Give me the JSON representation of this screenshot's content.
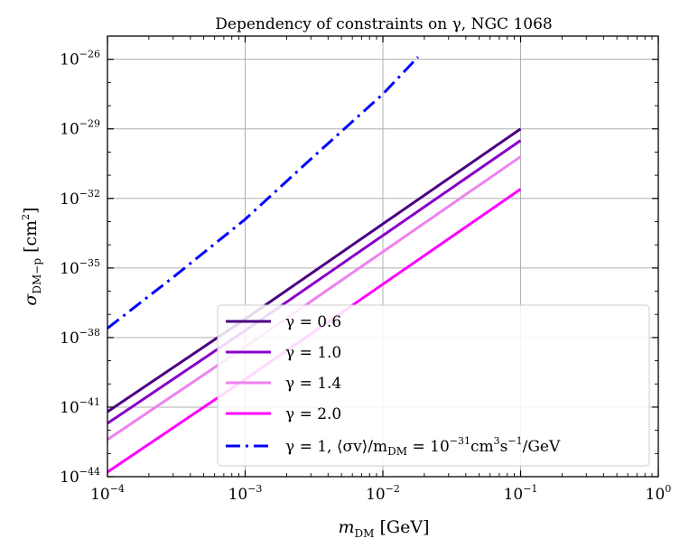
{
  "chart_data": {
    "type": "line",
    "title": "Dependency of constraints on γ, NGC 1068",
    "xlabel": "m_DM [GeV]",
    "ylabel": "σ_DM−p [cm²]",
    "xscale": "log",
    "yscale": "log",
    "xlim": [
      0.0001,
      1
    ],
    "ylim_exp": [
      -44,
      -25
    ],
    "grid": true,
    "legend_placement": "lower-right",
    "x_ticks": [
      {
        "base": "10",
        "exp": "−4"
      },
      {
        "base": "10",
        "exp": "−3"
      },
      {
        "base": "10",
        "exp": "−2"
      },
      {
        "base": "10",
        "exp": "−1"
      },
      {
        "base": "10",
        "exp": "0"
      }
    ],
    "y_ticks": [
      {
        "base": "10",
        "exp": "−26"
      },
      {
        "base": "10",
        "exp": "−29"
      },
      {
        "base": "10",
        "exp": "−32"
      },
      {
        "base": "10",
        "exp": "−35"
      },
      {
        "base": "10",
        "exp": "−38"
      },
      {
        "base": "10",
        "exp": "−41"
      },
      {
        "base": "10",
        "exp": "−44"
      }
    ],
    "series": [
      {
        "name": "γ = 0.6",
        "color": "#4b0082",
        "style": "solid",
        "x": [
          0.0001,
          0.001,
          0.01,
          0.1
        ],
        "log10_y": [
          -41.2,
          -37.2,
          -33.1,
          -29.0
        ]
      },
      {
        "name": "γ = 1.0",
        "color": "#8a00c8",
        "style": "solid",
        "x": [
          0.0001,
          0.001,
          0.01,
          0.1
        ],
        "log10_y": [
          -41.7,
          -37.7,
          -33.6,
          -29.5
        ]
      },
      {
        "name": "γ = 1.4",
        "color": "#ee82ee",
        "style": "solid",
        "x": [
          0.0001,
          0.001,
          0.01,
          0.1
        ],
        "log10_y": [
          -42.4,
          -38.4,
          -34.3,
          -30.2
        ]
      },
      {
        "name": "γ = 2.0",
        "color": "#ff00ff",
        "style": "solid",
        "x": [
          0.0001,
          0.001,
          0.01,
          0.1
        ],
        "log10_y": [
          -43.8,
          -39.8,
          -35.7,
          -31.6
        ]
      },
      {
        "name": "γ = 1, ⟨σv⟩/m_DM = 10⁻³¹cm³s⁻¹/GeV",
        "color": "#0000ff",
        "style": "dashdot",
        "x": [
          0.0001,
          0.0003,
          0.001,
          0.003,
          0.01,
          0.018
        ],
        "log10_y": [
          -37.6,
          -35.4,
          -32.9,
          -30.3,
          -27.5,
          -25.9
        ]
      }
    ],
    "legend": [
      {
        "label_main": "γ = 0.6"
      },
      {
        "label_main": "γ = 1.0"
      },
      {
        "label_main": "γ = 1.4"
      },
      {
        "label_main": "γ = 2.0"
      },
      {
        "label_main": "γ = 1, ⟨σv⟩/m",
        "label_sub": "DM",
        "label_mid": " = 10",
        "label_sup": "−31",
        "label_unit1": "cm",
        "label_sup2": "3",
        "label_unit2": "s",
        "label_sup3": "−1",
        "label_unit3": "/GeV"
      }
    ]
  }
}
